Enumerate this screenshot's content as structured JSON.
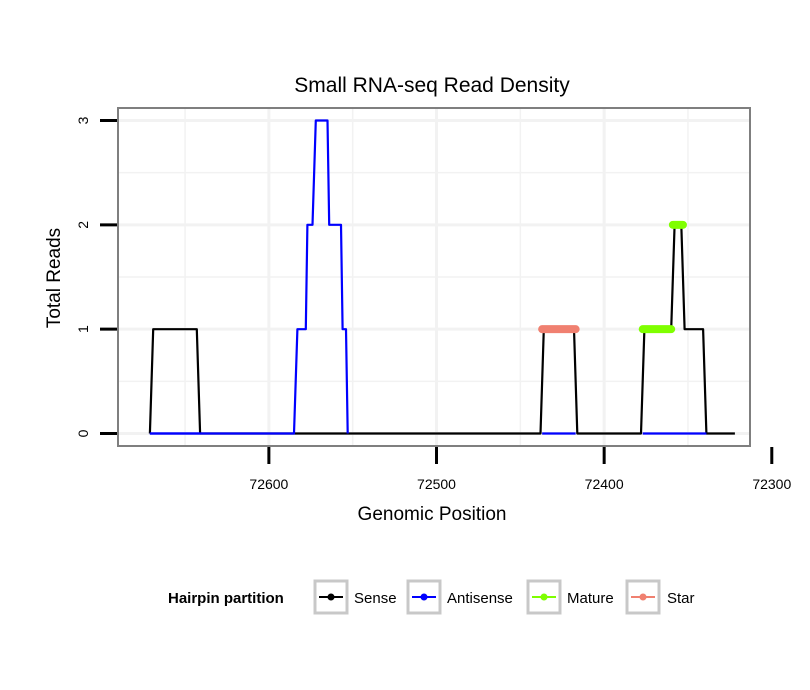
{
  "chart_data": {
    "type": "line",
    "title": "Small RNA-seq Read Density",
    "xlabel": "Genomic Position",
    "ylabel": "Total Reads",
    "x_reversed": true,
    "xlim": [
      72690,
      72313
    ],
    "ylim": [
      -0.12,
      3.12
    ],
    "x_ticks": [
      72600,
      72500,
      72400,
      72300
    ],
    "x_tick_labels": [
      "72600",
      "72500",
      "72400",
      "72300"
    ],
    "y_ticks": [
      0,
      1,
      2,
      3
    ],
    "y_tick_labels": [
      "0",
      "1",
      "2",
      "3"
    ],
    "grid": true,
    "legend": {
      "title": "Hairpin partition",
      "position": "bottom",
      "entries": [
        {
          "label": "Sense",
          "color": "#000000"
        },
        {
          "label": "Antisense",
          "color": "#0000ff"
        },
        {
          "label": "Mature",
          "color": "#7fff00"
        },
        {
          "label": "Star",
          "color": "#f08070"
        }
      ]
    },
    "series": [
      {
        "name": "Sense",
        "color": "#000000",
        "x": [
          72671,
          72669,
          72643,
          72641,
          72438,
          72436,
          72418,
          72416,
          72378,
          72376,
          72360,
          72358,
          72354,
          72352,
          72341,
          72339,
          72322
        ],
        "y": [
          0,
          1,
          1,
          0,
          0,
          1,
          1,
          0,
          0,
          1,
          1,
          2,
          2,
          1,
          1,
          0,
          0
        ]
      },
      {
        "name": "Antisense",
        "color": "#0000ff",
        "x": [
          72671,
          72585,
          72583,
          72578,
          72577,
          72574,
          72572,
          72565,
          72564,
          72557,
          72556,
          72554,
          72553,
          72671
        ],
        "y": [
          0,
          0,
          1,
          1,
          2,
          2,
          3,
          3,
          2,
          2,
          1,
          1,
          0,
          0
        ],
        "path_order": [
          0,
          1,
          2,
          3,
          4,
          5,
          6,
          7,
          8,
          9,
          10,
          11,
          12
        ]
      },
      {
        "name": "Mature",
        "color": "#7fff00",
        "segments": [
          {
            "x": [
              72377,
              72360
            ],
            "y": [
              1,
              1
            ]
          },
          {
            "x": [
              72359,
              72353
            ],
            "y": [
              2,
              2
            ]
          }
        ]
      },
      {
        "name": "Star",
        "color": "#f08070",
        "segments": [
          {
            "x": [
              72437,
              72417
            ],
            "y": [
              1,
              1
            ]
          }
        ]
      }
    ],
    "antisense_baseline_segments": [
      {
        "x": [
          72671,
          72641
        ],
        "y": [
          0,
          0
        ]
      },
      {
        "x": [
          72437,
          72417
        ],
        "y": [
          0,
          0
        ]
      },
      {
        "x": [
          72377,
          72339
        ],
        "y": [
          0,
          0
        ]
      }
    ]
  }
}
